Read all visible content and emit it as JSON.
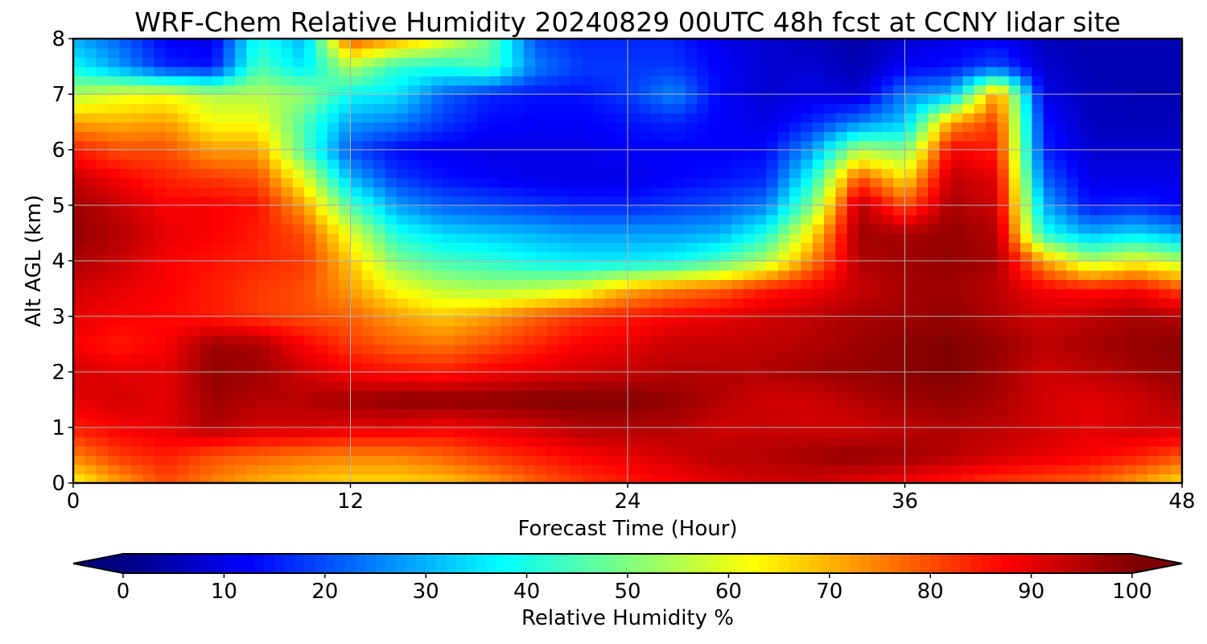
{
  "chart_data": {
    "type": "heatmap",
    "title": "WRF-Chem Relative Humidity 20240829 00UTC 48h fcst at CCNY lidar site",
    "xlabel": "Forecast Time (Hour)",
    "ylabel": "Alt AGL (km)",
    "xlim": [
      0,
      48
    ],
    "ylim": [
      0,
      8
    ],
    "x_ticks": [
      0,
      12,
      24,
      36,
      48
    ],
    "y_ticks": [
      0,
      1,
      2,
      3,
      4,
      5,
      6,
      7,
      8
    ],
    "grid": true,
    "colormap": "jet",
    "colorbar": {
      "label": "Relative Humidity %",
      "range": [
        0,
        100
      ],
      "ticks": [
        0,
        10,
        20,
        30,
        40,
        50,
        60,
        70,
        80,
        90,
        100
      ],
      "extend": "both",
      "orientation": "horizontal",
      "placement": "bottom"
    },
    "x": [
      0,
      2,
      4,
      6,
      8,
      10,
      12,
      14,
      16,
      18,
      20,
      22,
      24,
      26,
      28,
      30,
      32,
      34,
      36,
      38,
      40,
      42,
      44,
      46,
      48
    ],
    "y": [
      0,
      0.5,
      1,
      1.5,
      2,
      2.5,
      3,
      3.5,
      4,
      4.5,
      5,
      5.5,
      6,
      6.5,
      7,
      7.5,
      8
    ],
    "z": [
      [
        62,
        72,
        80,
        75,
        70,
        68,
        66,
        66,
        68,
        72,
        78,
        82,
        85,
        88,
        90,
        92,
        92,
        90,
        88,
        85,
        82,
        80,
        78,
        72,
        65
      ],
      [
        75,
        82,
        85,
        80,
        78,
        76,
        75,
        75,
        78,
        82,
        85,
        88,
        90,
        92,
        95,
        95,
        97,
        98,
        97,
        95,
        92,
        90,
        88,
        85,
        80
      ],
      [
        85,
        88,
        90,
        95,
        92,
        92,
        90,
        90,
        88,
        90,
        92,
        95,
        95,
        95,
        92,
        93,
        92,
        92,
        94,
        95,
        94,
        92,
        90,
        92,
        92
      ],
      [
        90,
        92,
        90,
        97,
        95,
        95,
        97,
        99,
        99,
        99,
        100,
        100,
        100,
        98,
        95,
        92,
        92,
        95,
        97,
        98,
        96,
        92,
        90,
        92,
        96
      ],
      [
        92,
        90,
        90,
        98,
        97,
        92,
        88,
        86,
        85,
        88,
        90,
        92,
        93,
        95,
        95,
        95,
        97,
        98,
        99,
        100,
        97,
        92,
        94,
        96,
        98
      ],
      [
        88,
        85,
        88,
        97,
        96,
        88,
        82,
        78,
        76,
        80,
        84,
        88,
        90,
        93,
        93,
        94,
        95,
        97,
        99,
        100,
        98,
        94,
        96,
        98,
        99
      ],
      [
        90,
        88,
        87,
        85,
        82,
        80,
        78,
        72,
        68,
        72,
        78,
        83,
        85,
        88,
        90,
        92,
        94,
        96,
        97,
        98,
        95,
        92,
        94,
        96,
        95
      ],
      [
        92,
        90,
        88,
        85,
        82,
        80,
        72,
        62,
        56,
        54,
        56,
        60,
        70,
        75,
        78,
        85,
        88,
        93,
        96,
        97,
        94,
        88,
        86,
        88,
        80
      ],
      [
        96,
        93,
        88,
        86,
        84,
        82,
        68,
        50,
        44,
        42,
        38,
        36,
        36,
        38,
        45,
        55,
        75,
        95,
        97,
        98,
        96,
        72,
        55,
        62,
        55
      ],
      [
        98,
        95,
        90,
        88,
        85,
        80,
        60,
        40,
        34,
        32,
        30,
        28,
        28,
        28,
        30,
        40,
        65,
        97,
        96,
        98,
        95,
        40,
        30,
        34,
        28
      ],
      [
        97,
        93,
        88,
        88,
        86,
        72,
        45,
        28,
        22,
        20,
        18,
        16,
        16,
        18,
        20,
        25,
        50,
        95,
        80,
        96,
        92,
        30,
        14,
        16,
        12
      ],
      [
        93,
        88,
        84,
        82,
        80,
        60,
        30,
        18,
        14,
        12,
        10,
        10,
        10,
        12,
        14,
        16,
        40,
        80,
        65,
        94,
        90,
        22,
        10,
        10,
        10
      ],
      [
        85,
        80,
        80,
        72,
        72,
        45,
        20,
        13,
        11,
        10,
        10,
        10,
        12,
        12,
        12,
        13,
        28,
        55,
        50,
        88,
        85,
        16,
        8,
        8,
        8
      ],
      [
        72,
        70,
        72,
        62,
        62,
        45,
        28,
        25,
        18,
        13,
        12,
        12,
        14,
        16,
        12,
        10,
        16,
        25,
        32,
        72,
        82,
        14,
        6,
        6,
        6
      ],
      [
        55,
        60,
        62,
        55,
        55,
        52,
        38,
        35,
        22,
        16,
        14,
        14,
        18,
        26,
        12,
        8,
        10,
        8,
        25,
        30,
        75,
        10,
        6,
        5,
        5
      ],
      [
        38,
        28,
        16,
        14,
        45,
        35,
        55,
        42,
        40,
        45,
        25,
        18,
        18,
        18,
        12,
        8,
        8,
        5,
        12,
        14,
        20,
        8,
        5,
        5,
        5
      ],
      [
        30,
        22,
        12,
        10,
        40,
        30,
        80,
        72,
        62,
        48,
        20,
        16,
        16,
        16,
        10,
        8,
        6,
        4,
        8,
        10,
        12,
        6,
        5,
        5,
        5
      ]
    ]
  }
}
